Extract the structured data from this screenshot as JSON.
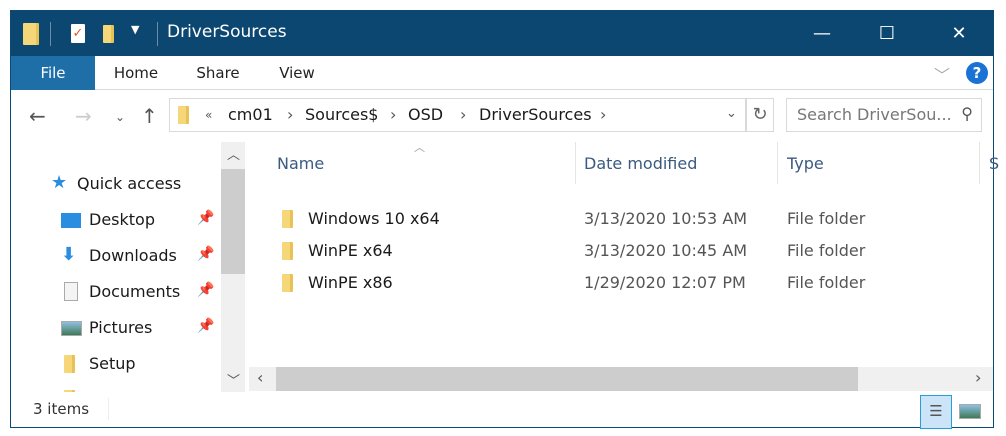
{
  "window": {
    "title": "DriverSources",
    "controls": {
      "minimize": "—",
      "maximize": "☐",
      "close": "✕"
    }
  },
  "ribbon": {
    "tabs": [
      "File",
      "Home",
      "Share",
      "View"
    ],
    "help": "?"
  },
  "address": {
    "overflow": "«",
    "crumbs": [
      "cm01",
      "Sources$",
      "OSD",
      "DriverSources"
    ],
    "search_placeholder": "Search DriverSou..."
  },
  "nav": {
    "items": [
      {
        "label": "Quick access",
        "icon": "star-icon",
        "pinned": false
      },
      {
        "label": "Desktop",
        "icon": "desktop-icon",
        "pinned": true
      },
      {
        "label": "Downloads",
        "icon": "download-icon",
        "pinned": true
      },
      {
        "label": "Documents",
        "icon": "documents-icon",
        "pinned": true
      },
      {
        "label": "Pictures",
        "icon": "pictures-icon",
        "pinned": true
      },
      {
        "label": "Setup",
        "icon": "folder-icon",
        "pinned": false
      }
    ]
  },
  "columns": [
    "Name",
    "Date modified",
    "Type",
    "S"
  ],
  "files": [
    {
      "name": "Windows 10 x64",
      "date": "3/13/2020 10:53 AM",
      "type": "File folder"
    },
    {
      "name": "WinPE x64",
      "date": "3/13/2020 10:45 AM",
      "type": "File folder"
    },
    {
      "name": "WinPE x86",
      "date": "1/29/2020 12:07 PM",
      "type": "File folder"
    }
  ],
  "status": {
    "count": "3 items"
  },
  "colors": {
    "titlebar": "#0b4770",
    "file_tab": "#1e6ea7",
    "folder": "#f5d77a"
  }
}
